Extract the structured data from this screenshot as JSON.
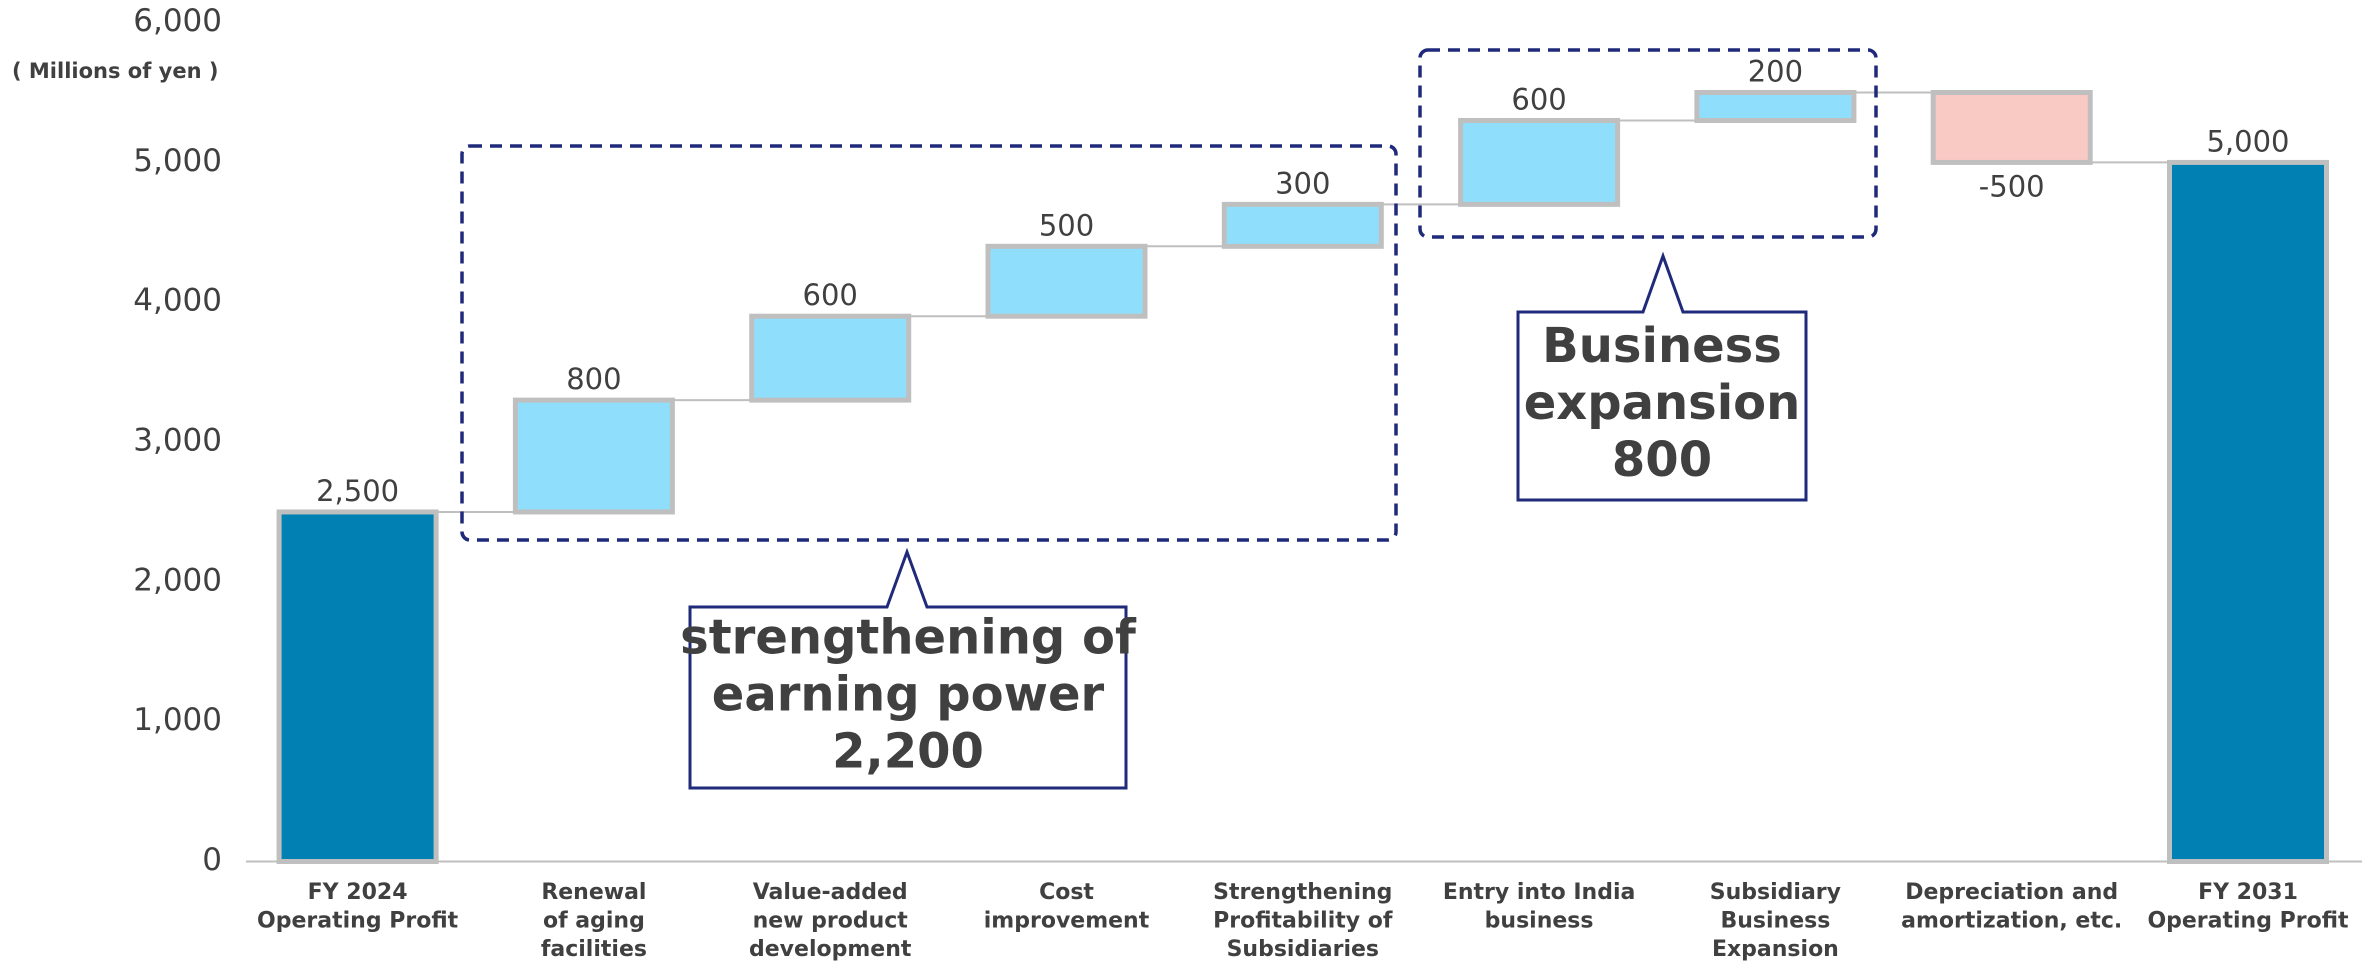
{
  "chart_data": {
    "type": "waterfall",
    "y_label": "( Millions of yen )",
    "categories": [
      [
        "FY 2024",
        "Operating Profit"
      ],
      [
        "Renewal",
        "of aging",
        "facilities"
      ],
      [
        "Value-added",
        "new product",
        "development"
      ],
      [
        "Cost",
        "improvement"
      ],
      [
        "Strengthening",
        "Profitability of",
        "Subsidiaries"
      ],
      [
        "Entry into India",
        "business"
      ],
      [
        "Subsidiary",
        "Business",
        "Expansion"
      ],
      [
        "Depreciation and",
        "amortization, etc."
      ],
      [
        "FY 2031",
        "Operating Profit"
      ]
    ],
    "measure": [
      "total",
      "relative",
      "relative",
      "relative",
      "relative",
      "relative",
      "relative",
      "relative",
      "total"
    ],
    "values": [
      2500,
      800,
      600,
      500,
      300,
      600,
      200,
      -500,
      5000
    ],
    "value_labels": [
      "2,500",
      "800",
      "600",
      "500",
      "300",
      "600",
      "200",
      "-500",
      "5,000"
    ],
    "colors": {
      "total": "#0080b3",
      "increase": "#8fdffc",
      "decrease": "#f9c9c4",
      "border": "#bfbfbf"
    },
    "ylim": [
      0,
      6000
    ],
    "yticks": [
      0,
      {
        "value": 1000,
        "label": "1,000"
      },
      {
        "value": 2000,
        "label": "2,000"
      },
      {
        "value": 3000,
        "label": "3,000"
      },
      {
        "value": 4000,
        "label": "4,000"
      },
      {
        "value": 5000,
        "label": "5,000"
      },
      {
        "value": 6000,
        "label": "6,000"
      }
    ],
    "annotations": [
      {
        "lines": [
          "strengthening of",
          "earning power",
          "2,200"
        ]
      },
      {
        "lines": [
          "Business",
          "expansion",
          "800"
        ]
      }
    ]
  }
}
